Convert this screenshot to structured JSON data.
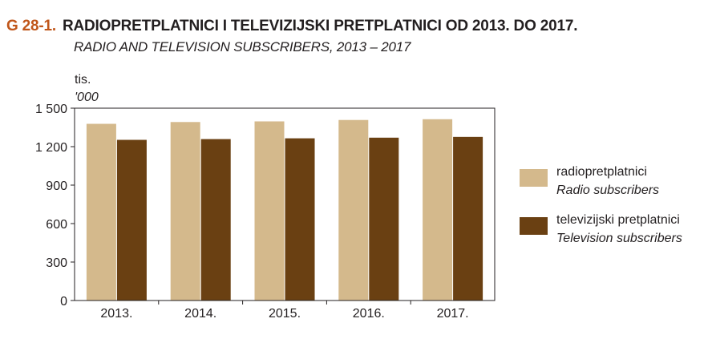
{
  "header": {
    "code": "G 28-1.",
    "title": "RADIOPRETPLATNICI I TELEVIZIJSKI PRETPLATNICI OD 2013. DO 2017.",
    "subtitle": "RADIO AND TELEVISION SUBSCRIBERS, 2013 – 2017",
    "unit_hr": "tis.",
    "unit_en": "'000"
  },
  "colors": {
    "radio": "#d4b98c",
    "television": "#6a4012",
    "title_code": "#c0561a",
    "axis": "#231f20"
  },
  "chart_data": {
    "type": "bar",
    "title": "RADIOPRETPLATNICI I TELEVIZIJSKI PRETPLATNICI OD 2013. DO 2017.",
    "subtitle": "RADIO AND TELEVISION SUBSCRIBERS, 2013 – 2017",
    "ylabel": "tis. '000",
    "xlabel": "",
    "categories": [
      "2013.",
      "2014.",
      "2015.",
      "2016.",
      "2017."
    ],
    "series": [
      {
        "name": "radiopretplatnici",
        "name_en": "Radio subscribers",
        "color": "#d4b98c",
        "values": [
          1378,
          1392,
          1397,
          1408,
          1414
        ]
      },
      {
        "name": "televizijski pretplatnici",
        "name_en": "Television subscribers",
        "color": "#6a4012",
        "values": [
          1253,
          1259,
          1265,
          1270,
          1276
        ]
      }
    ],
    "ylim": [
      0,
      1500
    ],
    "yticks": [
      0,
      300,
      600,
      900,
      1200,
      1500
    ],
    "ytick_labels": [
      "0",
      "300",
      "600",
      "900",
      "1 200",
      "1 500"
    ],
    "grid": false,
    "legend_position": "right"
  }
}
